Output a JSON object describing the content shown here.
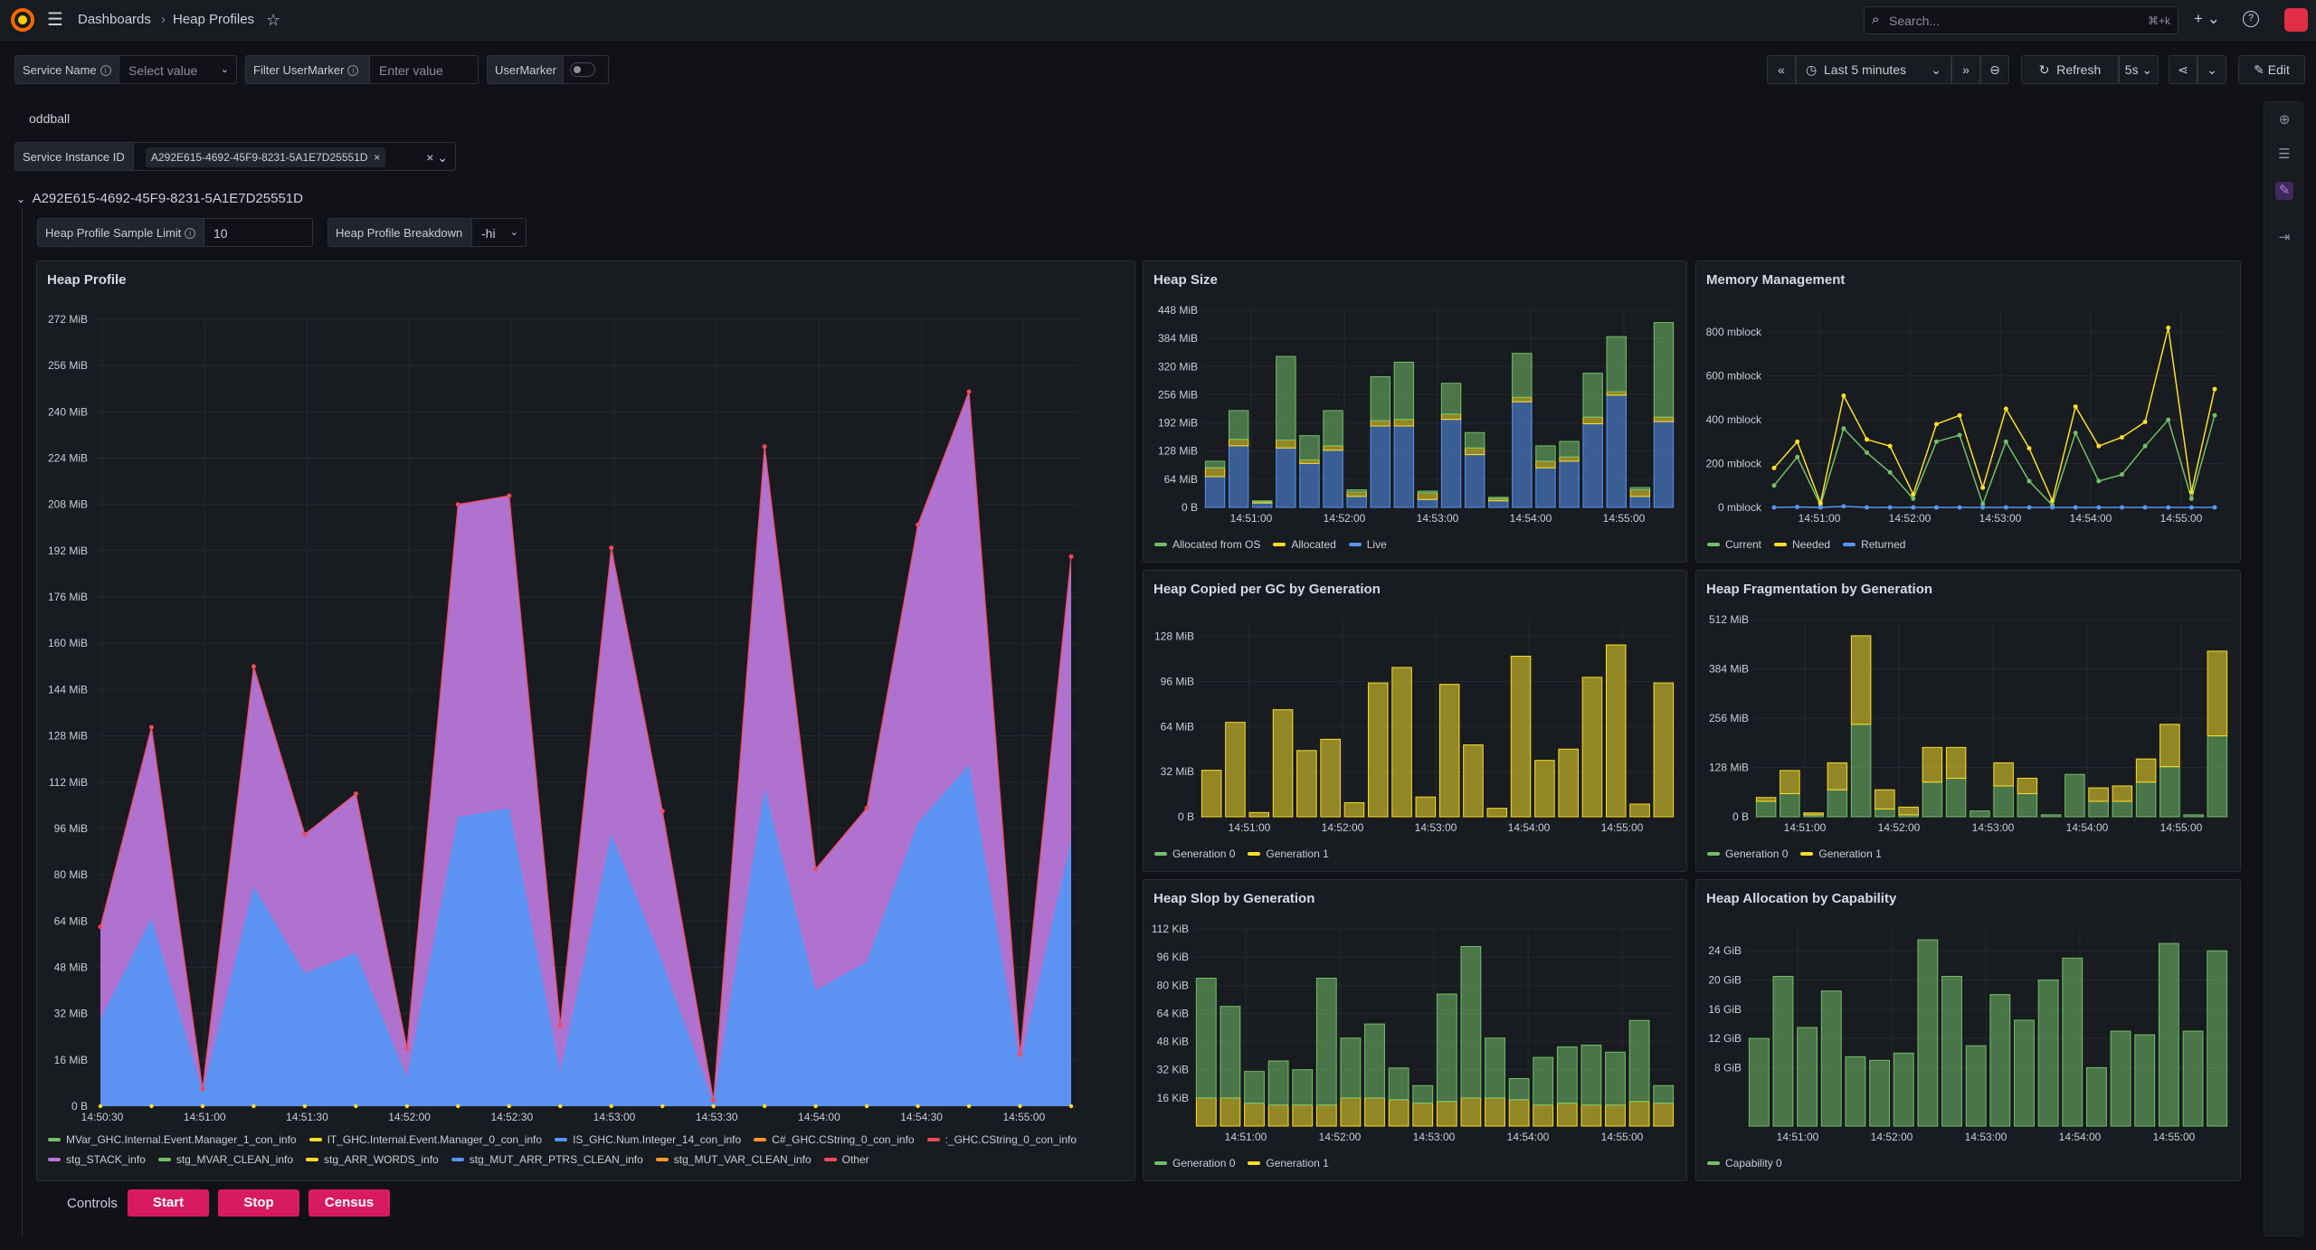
{
  "topbar": {
    "breadcrumb_root": "Dashboards",
    "breadcrumb_sep": "›",
    "breadcrumb_page": "Heap Profiles",
    "search_placeholder": "Search...",
    "search_shortcut": "⌘+k"
  },
  "variables": {
    "service_name_label": "Service Name",
    "service_name_value": "Select value",
    "filter_marker_label": "Filter UserMarker",
    "filter_marker_placeholder": "Enter value",
    "user_marker_label": "UserMarker",
    "oddball": "oddball",
    "instance_label": "Service Instance ID",
    "instance_value": "A292E615-4692-45F9-8231-5A1E7D25551D"
  },
  "time_controls": {
    "range": "Last 5 minutes",
    "refresh": "Refresh",
    "interval": "5s",
    "edit": "Edit"
  },
  "row": {
    "title": "A292E615-4692-45F9-8231-5A1E7D25551D",
    "sample_limit_label": "Heap Profile Sample Limit",
    "sample_limit_value": "10",
    "breakdown_label": "Heap Profile Breakdown",
    "breakdown_value": "-hi"
  },
  "controls": {
    "label": "Controls",
    "start": "Start",
    "stop": "Stop",
    "census": "Census"
  },
  "colors": {
    "green": "#73bf69",
    "yellow": "#fade2a",
    "blue": "#5794f2",
    "purple": "#b877d9",
    "red": "#f2495c",
    "pink": "#d81b60"
  },
  "chart_data": [
    {
      "title": "Heap Profile",
      "type": "area",
      "x_ticks": [
        "14:50:30",
        "14:51:00",
        "14:51:30",
        "14:52:00",
        "14:52:30",
        "14:53:00",
        "14:53:30",
        "14:54:00",
        "14:54:30",
        "14:55:00"
      ],
      "y_ticks": [
        "0 B",
        "16 MiB",
        "32 MiB",
        "48 MiB",
        "64 MiB",
        "80 MiB",
        "96 MiB",
        "112 MiB",
        "128 MiB",
        "144 MiB",
        "160 MiB",
        "176 MiB",
        "192 MiB",
        "208 MiB",
        "224 MiB",
        "240 MiB",
        "256 MiB",
        "272 MiB"
      ],
      "ylim": [
        0,
        272
      ],
      "series": [
        {
          "name": "IS_GHC.Num.Integer_14_con_info",
          "color": "#5794f2",
          "values": [
            30,
            65,
            5,
            76,
            46,
            53,
            10,
            100,
            103,
            12,
            94,
            50,
            1,
            110,
            40,
            50,
            98,
            118,
            15,
            92
          ]
        },
        {
          "name": "stg_STACK_info",
          "color": "#b877d9",
          "values": [
            62,
            131,
            6,
            152,
            94,
            108,
            20,
            208,
            211,
            28,
            193,
            102,
            2,
            228,
            82,
            103,
            201,
            247,
            18,
            190
          ]
        }
      ],
      "legend": [
        {
          "name": "MVar_GHC.Internal.Event.Manager_1_con_info",
          "color": "#73bf69"
        },
        {
          "name": "IT_GHC.Internal.Event.Manager_0_con_info",
          "color": "#fade2a"
        },
        {
          "name": "IS_GHC.Num.Integer_14_con_info",
          "color": "#5794f2"
        },
        {
          "name": "C#_GHC.CString_0_con_info",
          "color": "#ff9830"
        },
        {
          "name": ":_GHC.CString_0_con_info",
          "color": "#f2495c"
        },
        {
          "name": "stg_STACK_info",
          "color": "#b877d9"
        },
        {
          "name": "stg_MVAR_CLEAN_info",
          "color": "#73bf69"
        },
        {
          "name": "stg_ARR_WORDS_info",
          "color": "#fade2a"
        },
        {
          "name": "stg_MUT_ARR_PTRS_CLEAN_info",
          "color": "#5794f2"
        },
        {
          "name": "stg_MUT_VAR_CLEAN_info",
          "color": "#ff9830"
        },
        {
          "name": "Other",
          "color": "#f2495c"
        }
      ]
    },
    {
      "title": "Heap Size",
      "type": "bar",
      "x_ticks": [
        "14:51:00",
        "14:52:00",
        "14:53:00",
        "14:54:00",
        "14:55:00"
      ],
      "y_ticks": [
        "0 B",
        "64 MiB",
        "128 MiB",
        "192 MiB",
        "256 MiB",
        "320 MiB",
        "384 MiB",
        "448 MiB"
      ],
      "ylim": [
        0,
        448
      ],
      "series": [
        {
          "name": "Live",
          "color": "#5794f2",
          "values": [
            70,
            140,
            10,
            135,
            100,
            130,
            25,
            185,
            185,
            18,
            200,
            120,
            15,
            240,
            90,
            105,
            190,
            255,
            25,
            195
          ]
        },
        {
          "name": "Allocated",
          "color": "#fade2a",
          "values": [
            20,
            15,
            3,
            18,
            8,
            10,
            10,
            12,
            15,
            15,
            12,
            15,
            5,
            10,
            15,
            10,
            15,
            8,
            15,
            10
          ]
        },
        {
          "name": "Allocated from OS",
          "color": "#73bf69",
          "values": [
            15,
            65,
            2,
            190,
            55,
            80,
            5,
            100,
            130,
            4,
            70,
            35,
            3,
            100,
            35,
            35,
            100,
            125,
            5,
            215
          ]
        }
      ],
      "legend": [
        {
          "name": "Allocated from OS",
          "color": "#73bf69"
        },
        {
          "name": "Allocated",
          "color": "#fade2a"
        },
        {
          "name": "Live",
          "color": "#5794f2"
        }
      ]
    },
    {
      "title": "Memory Management",
      "type": "line",
      "x_ticks": [
        "14:51:00",
        "14:52:00",
        "14:53:00",
        "14:54:00",
        "14:55:00"
      ],
      "y_ticks": [
        "0 mblock",
        "200 mblock",
        "400 mblock",
        "600 mblock",
        "800 mblock"
      ],
      "ylim": [
        0,
        900
      ],
      "series": [
        {
          "name": "Current",
          "color": "#73bf69",
          "values": [
            100,
            230,
            10,
            360,
            250,
            160,
            40,
            300,
            330,
            15,
            300,
            120,
            10,
            340,
            120,
            150,
            280,
            400,
            40,
            420
          ]
        },
        {
          "name": "Needed",
          "color": "#fade2a",
          "values": [
            180,
            300,
            20,
            510,
            310,
            280,
            60,
            380,
            420,
            90,
            450,
            270,
            30,
            460,
            280,
            320,
            390,
            820,
            70,
            540
          ]
        },
        {
          "name": "Returned",
          "color": "#5794f2",
          "values": [
            0,
            2,
            0,
            5,
            0,
            0,
            0,
            0,
            0,
            0,
            0,
            0,
            0,
            0,
            0,
            0,
            0,
            0,
            0,
            0
          ]
        }
      ],
      "legend": [
        {
          "name": "Current",
          "color": "#73bf69"
        },
        {
          "name": "Needed",
          "color": "#fade2a"
        },
        {
          "name": "Returned",
          "color": "#5794f2"
        }
      ]
    },
    {
      "title": "Heap Copied per GC by Generation",
      "type": "bar",
      "x_ticks": [
        "14:51:00",
        "14:52:00",
        "14:53:00",
        "14:54:00",
        "14:55:00"
      ],
      "y_ticks": [
        "0 B",
        "32 MiB",
        "64 MiB",
        "96 MiB",
        "128 MiB"
      ],
      "ylim": [
        0,
        140
      ],
      "series": [
        {
          "name": "Generation 0",
          "color": "#73bf69",
          "values": [
            0,
            0,
            0,
            0,
            0,
            0,
            0,
            0,
            0,
            0,
            0,
            0,
            0,
            0,
            0,
            0,
            0,
            0,
            0,
            0
          ]
        },
        {
          "name": "Generation 1",
          "color": "#fade2a",
          "values": [
            33,
            67,
            3,
            76,
            47,
            55,
            10,
            95,
            106,
            14,
            94,
            51,
            6,
            114,
            40,
            48,
            99,
            122,
            9,
            95
          ]
        }
      ],
      "legend": [
        {
          "name": "Generation 0",
          "color": "#73bf69"
        },
        {
          "name": "Generation 1",
          "color": "#fade2a"
        }
      ]
    },
    {
      "title": "Heap Fragmentation by Generation",
      "type": "bar",
      "x_ticks": [
        "14:51:00",
        "14:52:00",
        "14:53:00",
        "14:54:00",
        "14:55:00"
      ],
      "y_ticks": [
        "0 B",
        "128 MiB",
        "256 MiB",
        "384 MiB",
        "512 MiB"
      ],
      "ylim": [
        0,
        512
      ],
      "series": [
        {
          "name": "Generation 0",
          "color": "#73bf69",
          "values": [
            40,
            60,
            5,
            70,
            240,
            20,
            5,
            90,
            100,
            15,
            80,
            60,
            5,
            110,
            40,
            40,
            90,
            130,
            5,
            210
          ]
        },
        {
          "name": "Generation 1",
          "color": "#fade2a",
          "values": [
            10,
            60,
            5,
            70,
            230,
            50,
            20,
            90,
            80,
            0,
            60,
            40,
            0,
            0,
            35,
            40,
            60,
            110,
            0,
            220
          ]
        }
      ],
      "legend": [
        {
          "name": "Generation 0",
          "color": "#73bf69"
        },
        {
          "name": "Generation 1",
          "color": "#fade2a"
        }
      ]
    },
    {
      "title": "Heap Slop by Generation",
      "type": "bar",
      "x_ticks": [
        "14:51:00",
        "14:52:00",
        "14:53:00",
        "14:54:00",
        "14:55:00"
      ],
      "y_ticks": [
        "16 KiB",
        "32 KiB",
        "48 KiB",
        "64 KiB",
        "80 KiB",
        "96 KiB",
        "112 KiB"
      ],
      "ylim": [
        0,
        112
      ],
      "series": [
        {
          "name": "Generation 1",
          "color": "#fade2a",
          "values": [
            16,
            16,
            13,
            12,
            12,
            12,
            16,
            16,
            15,
            13,
            14,
            16,
            16,
            15,
            12,
            13,
            12,
            12,
            14,
            13
          ]
        },
        {
          "name": "Generation 0",
          "color": "#73bf69",
          "values": [
            68,
            52,
            18,
            25,
            20,
            72,
            34,
            42,
            18,
            10,
            61,
            86,
            34,
            12,
            27,
            32,
            34,
            30,
            46,
            10
          ]
        }
      ],
      "legend": [
        {
          "name": "Generation 0",
          "color": "#73bf69"
        },
        {
          "name": "Generation 1",
          "color": "#fade2a"
        }
      ]
    },
    {
      "title": "Heap Allocation by Capability",
      "type": "bar",
      "x_ticks": [
        "14:51:00",
        "14:52:00",
        "14:53:00",
        "14:54:00",
        "14:55:00"
      ],
      "y_ticks": [
        "8 GiB",
        "12 GiB",
        "16 GiB",
        "20 GiB",
        "24 GiB"
      ],
      "ylim": [
        0,
        27
      ],
      "series": [
        {
          "name": "Capability 0",
          "color": "#73bf69",
          "values": [
            12,
            20.5,
            13.5,
            18.5,
            9.5,
            9,
            10,
            25.5,
            20.5,
            11,
            18,
            14.5,
            20,
            23,
            8,
            13,
            12.5,
            25,
            13,
            24
          ]
        }
      ],
      "legend": [
        {
          "name": "Capability 0",
          "color": "#73bf69"
        }
      ]
    }
  ]
}
